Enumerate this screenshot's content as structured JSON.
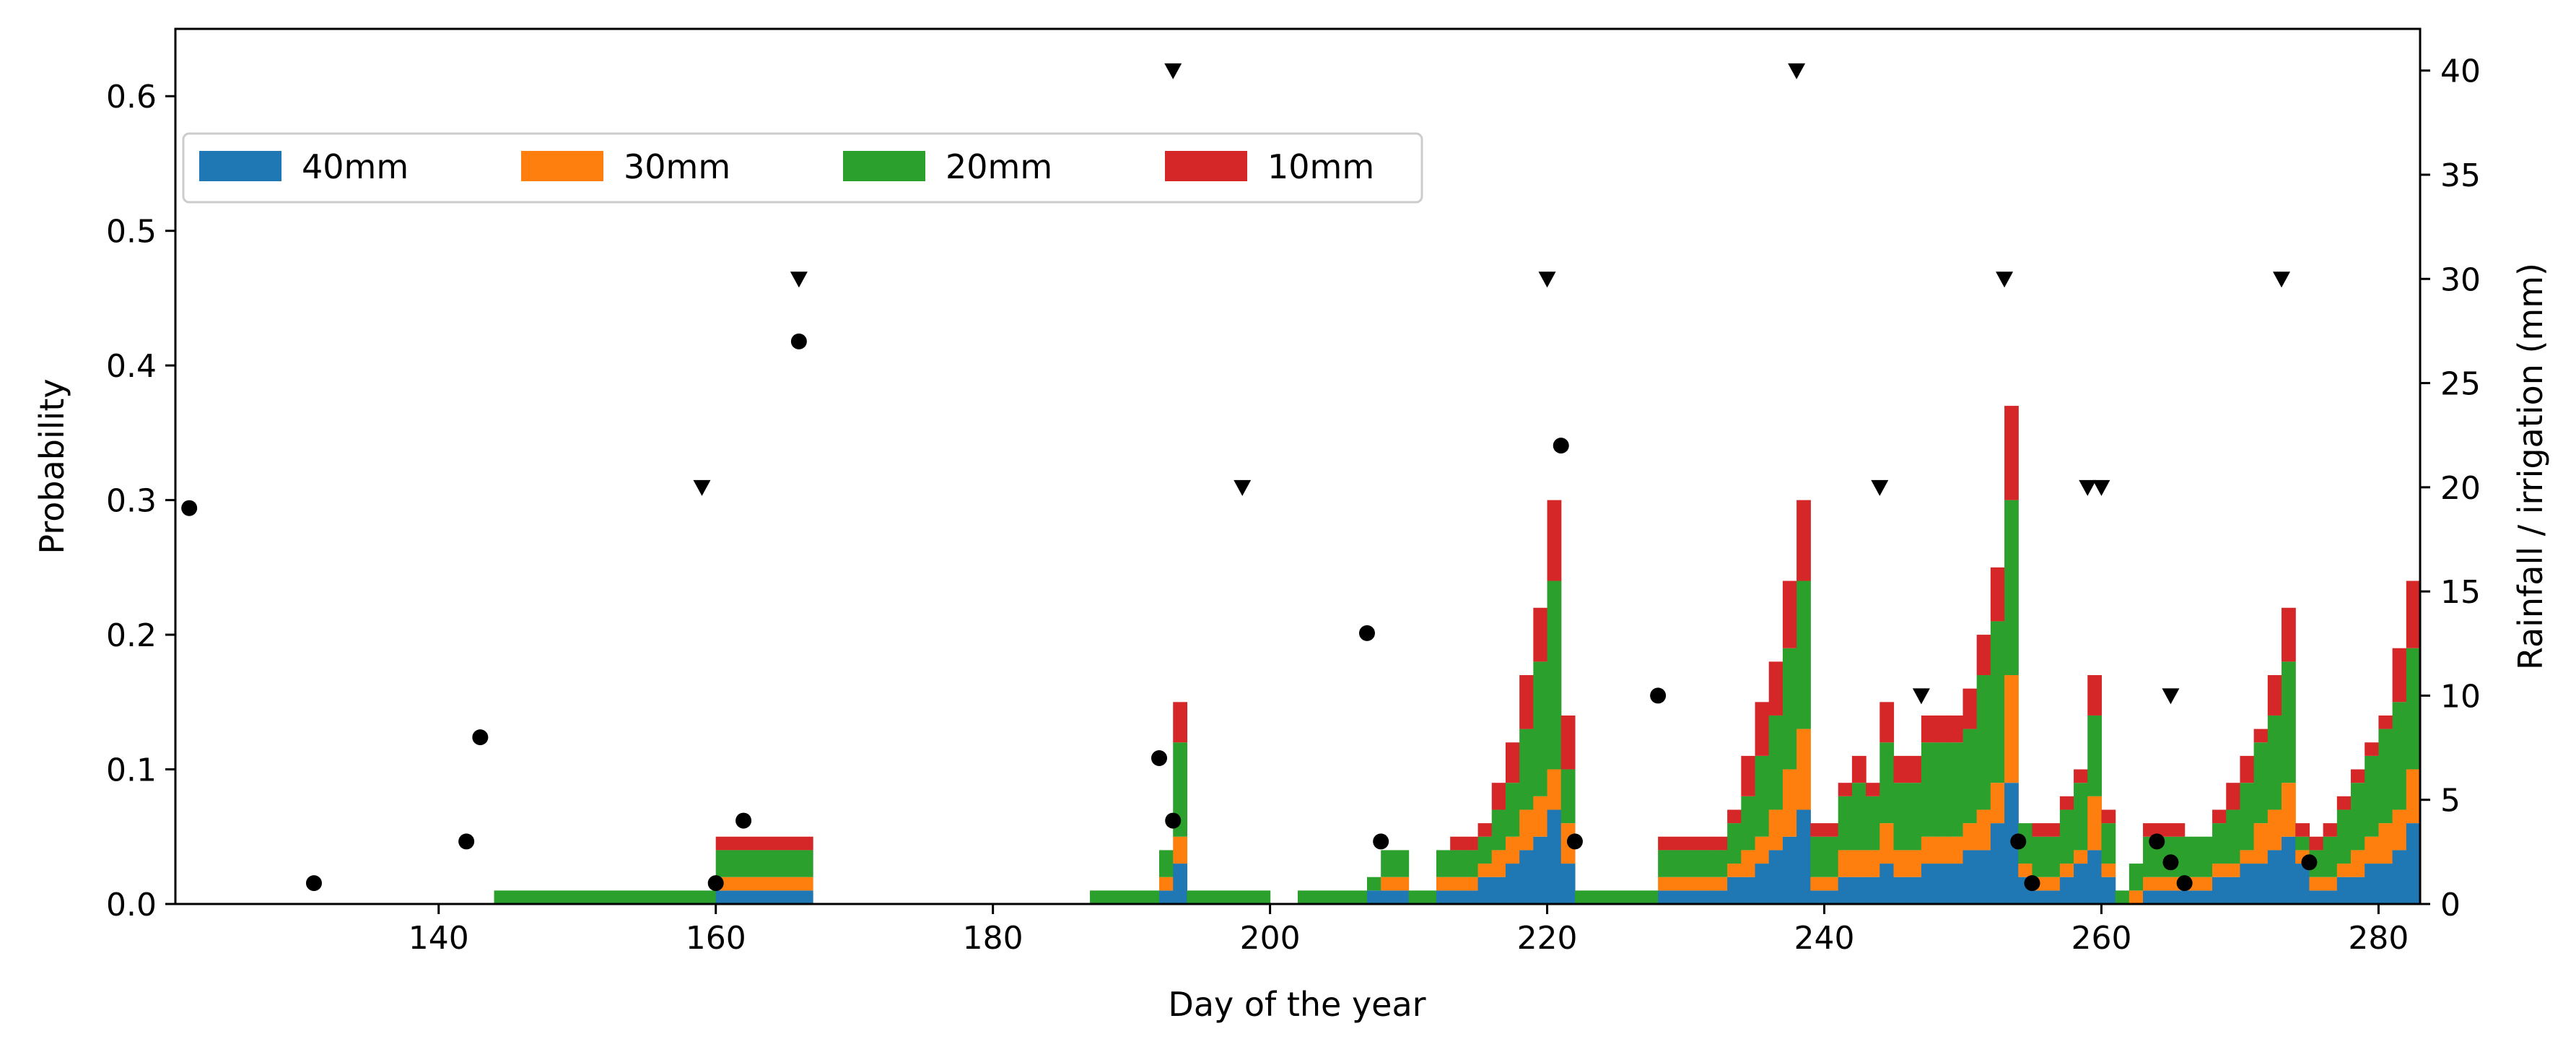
{
  "chart_data": {
    "type": "stacked-step-area + scatter",
    "xlabel": "Day of the year",
    "ylabel": "Probability",
    "y2label": "Rainfall / irrigation (mm)",
    "xlim": [
      121,
      283
    ],
    "ylim": [
      0,
      0.65
    ],
    "y2lim": [
      0,
      42
    ],
    "xticks": [
      140,
      160,
      180,
      200,
      220,
      240,
      260,
      280
    ],
    "yticks": [
      0.0,
      0.1,
      0.2,
      0.3,
      0.4,
      0.5,
      0.6
    ],
    "ytick_labels": [
      "0.0",
      "0.1",
      "0.2",
      "0.3",
      "0.4",
      "0.5",
      "0.6"
    ],
    "y2ticks": [
      0,
      5,
      10,
      15,
      20,
      25,
      30,
      35,
      40
    ],
    "legend_position": "upper-left",
    "series": [
      {
        "name": "40mm",
        "color": "#1f77b4"
      },
      {
        "name": "30mm",
        "color": "#ff7f0e"
      },
      {
        "name": "20mm",
        "color": "#2ca02c"
      },
      {
        "name": "10mm",
        "color": "#d62728"
      }
    ],
    "step_data": [
      {
        "day": 144,
        "end": 160,
        "p40": 0.0,
        "p30": 0.0,
        "p20": 0.01,
        "p10": 0.01
      },
      {
        "day": 160,
        "end": 167,
        "p40": 0.01,
        "p30": 0.02,
        "p20": 0.04,
        "p10": 0.05
      },
      {
        "day": 187,
        "end": 192,
        "p40": 0.0,
        "p30": 0.0,
        "p20": 0.01,
        "p10": 0.01
      },
      {
        "day": 192,
        "p40": 0.01,
        "p30": 0.02,
        "p20": 0.04,
        "p10": 0.04
      },
      {
        "day": 193,
        "p40": 0.03,
        "p30": 0.05,
        "p20": 0.12,
        "p10": 0.15
      },
      {
        "day": 194,
        "end": 200,
        "p40": 0.0,
        "p30": 0.0,
        "p20": 0.01,
        "p10": 0.01
      },
      {
        "day": 202,
        "end": 207,
        "p40": 0.0,
        "p30": 0.0,
        "p20": 0.01,
        "p10": 0.01
      },
      {
        "day": 207,
        "p40": 0.01,
        "p30": 0.01,
        "p20": 0.02,
        "p10": 0.02
      },
      {
        "day": 208,
        "end": 210,
        "p40": 0.01,
        "p30": 0.02,
        "p20": 0.04,
        "p10": 0.04
      },
      {
        "day": 210,
        "end": 212,
        "p40": 0.0,
        "p30": 0.0,
        "p20": 0.01,
        "p10": 0.01
      },
      {
        "day": 212,
        "p40": 0.01,
        "p30": 0.02,
        "p20": 0.04,
        "p10": 0.04
      },
      {
        "day": 213,
        "p40": 0.01,
        "p30": 0.02,
        "p20": 0.04,
        "p10": 0.05
      },
      {
        "day": 214,
        "p40": 0.01,
        "p30": 0.02,
        "p20": 0.04,
        "p10": 0.05
      },
      {
        "day": 215,
        "p40": 0.02,
        "p30": 0.03,
        "p20": 0.05,
        "p10": 0.06
      },
      {
        "day": 216,
        "p40": 0.02,
        "p30": 0.04,
        "p20": 0.07,
        "p10": 0.09
      },
      {
        "day": 217,
        "p40": 0.03,
        "p30": 0.05,
        "p20": 0.09,
        "p10": 0.12
      },
      {
        "day": 218,
        "p40": 0.04,
        "p30": 0.07,
        "p20": 0.13,
        "p10": 0.17
      },
      {
        "day": 219,
        "p40": 0.05,
        "p30": 0.08,
        "p20": 0.18,
        "p10": 0.22
      },
      {
        "day": 220,
        "p40": 0.07,
        "p30": 0.1,
        "p20": 0.24,
        "p10": 0.3
      },
      {
        "day": 221,
        "p40": 0.03,
        "p30": 0.06,
        "p20": 0.1,
        "p10": 0.14
      },
      {
        "day": 222,
        "end": 228,
        "p40": 0.0,
        "p30": 0.0,
        "p20": 0.01,
        "p10": 0.01
      },
      {
        "day": 228,
        "end": 232,
        "p40": 0.01,
        "p30": 0.02,
        "p20": 0.04,
        "p10": 0.05
      },
      {
        "day": 232,
        "p40": 0.01,
        "p30": 0.02,
        "p20": 0.04,
        "p10": 0.05
      },
      {
        "day": 233,
        "p40": 0.02,
        "p30": 0.03,
        "p20": 0.06,
        "p10": 0.07
      },
      {
        "day": 234,
        "p40": 0.02,
        "p30": 0.04,
        "p20": 0.08,
        "p10": 0.11
      },
      {
        "day": 235,
        "p40": 0.03,
        "p30": 0.05,
        "p20": 0.11,
        "p10": 0.15
      },
      {
        "day": 236,
        "p40": 0.04,
        "p30": 0.07,
        "p20": 0.14,
        "p10": 0.18
      },
      {
        "day": 237,
        "p40": 0.05,
        "p30": 0.1,
        "p20": 0.19,
        "p10": 0.24
      },
      {
        "day": 238,
        "p40": 0.07,
        "p30": 0.13,
        "p20": 0.24,
        "p10": 0.3
      },
      {
        "day": 239,
        "end": 241,
        "p40": 0.01,
        "p30": 0.02,
        "p20": 0.05,
        "p10": 0.06
      },
      {
        "day": 241,
        "p40": 0.02,
        "p30": 0.04,
        "p20": 0.08,
        "p10": 0.09
      },
      {
        "day": 242,
        "p40": 0.02,
        "p30": 0.04,
        "p20": 0.09,
        "p10": 0.11
      },
      {
        "day": 243,
        "p40": 0.02,
        "p30": 0.04,
        "p20": 0.08,
        "p10": 0.09
      },
      {
        "day": 244,
        "p40": 0.03,
        "p30": 0.06,
        "p20": 0.12,
        "p10": 0.15
      },
      {
        "day": 245,
        "p40": 0.02,
        "p30": 0.04,
        "p20": 0.09,
        "p10": 0.11
      },
      {
        "day": 246,
        "p40": 0.02,
        "p30": 0.04,
        "p20": 0.09,
        "p10": 0.11
      },
      {
        "day": 247,
        "p40": 0.03,
        "p30": 0.05,
        "p20": 0.12,
        "p10": 0.14
      },
      {
        "day": 248,
        "p40": 0.03,
        "p30": 0.05,
        "p20": 0.12,
        "p10": 0.14
      },
      {
        "day": 249,
        "p40": 0.03,
        "p30": 0.05,
        "p20": 0.12,
        "p10": 0.14
      },
      {
        "day": 250,
        "p40": 0.04,
        "p30": 0.06,
        "p20": 0.13,
        "p10": 0.16
      },
      {
        "day": 251,
        "p40": 0.04,
        "p30": 0.07,
        "p20": 0.17,
        "p10": 0.2
      },
      {
        "day": 252,
        "p40": 0.06,
        "p30": 0.09,
        "p20": 0.21,
        "p10": 0.25
      },
      {
        "day": 253,
        "p40": 0.09,
        "p30": 0.17,
        "p20": 0.3,
        "p10": 0.37
      },
      {
        "day": 254,
        "p40": 0.02,
        "p30": 0.03,
        "p20": 0.06,
        "p10": 0.06
      },
      {
        "day": 255,
        "p40": 0.01,
        "p30": 0.02,
        "p20": 0.05,
        "p10": 0.06
      },
      {
        "day": 256,
        "p40": 0.01,
        "p30": 0.02,
        "p20": 0.05,
        "p10": 0.06
      },
      {
        "day": 257,
        "p40": 0.02,
        "p30": 0.03,
        "p20": 0.07,
        "p10": 0.08
      },
      {
        "day": 258,
        "p40": 0.03,
        "p30": 0.04,
        "p20": 0.09,
        "p10": 0.1
      },
      {
        "day": 259,
        "p40": 0.04,
        "p30": 0.08,
        "p20": 0.14,
        "p10": 0.17
      },
      {
        "day": 260,
        "p40": 0.02,
        "p30": 0.03,
        "p20": 0.06,
        "p10": 0.07
      },
      {
        "day": 261,
        "p40": 0.0,
        "p30": 0.0,
        "p20": 0.01,
        "p10": 0.01
      },
      {
        "day": 262,
        "p40": 0.0,
        "p30": 0.01,
        "p20": 0.03,
        "p10": 0.03
      },
      {
        "day": 263,
        "end": 266,
        "p40": 0.01,
        "p30": 0.02,
        "p20": 0.05,
        "p10": 0.06
      },
      {
        "day": 266,
        "end": 268,
        "p40": 0.01,
        "p30": 0.02,
        "p20": 0.05,
        "p10": 0.05
      },
      {
        "day": 268,
        "p40": 0.02,
        "p30": 0.03,
        "p20": 0.06,
        "p10": 0.07
      },
      {
        "day": 269,
        "p40": 0.02,
        "p30": 0.03,
        "p20": 0.07,
        "p10": 0.09
      },
      {
        "day": 270,
        "p40": 0.03,
        "p30": 0.04,
        "p20": 0.09,
        "p10": 0.11
      },
      {
        "day": 271,
        "p40": 0.03,
        "p30": 0.06,
        "p20": 0.12,
        "p10": 0.13
      },
      {
        "day": 272,
        "p40": 0.04,
        "p30": 0.07,
        "p20": 0.14,
        "p10": 0.17
      },
      {
        "day": 273,
        "p40": 0.05,
        "p30": 0.09,
        "p20": 0.18,
        "p10": 0.22
      },
      {
        "day": 274,
        "p40": 0.03,
        "p30": 0.04,
        "p20": 0.05,
        "p10": 0.06
      },
      {
        "day": 275,
        "p40": 0.01,
        "p30": 0.02,
        "p20": 0.04,
        "p10": 0.05
      },
      {
        "day": 276,
        "p40": 0.01,
        "p30": 0.02,
        "p20": 0.05,
        "p10": 0.06
      },
      {
        "day": 277,
        "p40": 0.02,
        "p30": 0.03,
        "p20": 0.07,
        "p10": 0.08
      },
      {
        "day": 278,
        "p40": 0.02,
        "p30": 0.04,
        "p20": 0.09,
        "p10": 0.1
      },
      {
        "day": 279,
        "p40": 0.03,
        "p30": 0.05,
        "p20": 0.11,
        "p10": 0.12
      },
      {
        "day": 280,
        "p40": 0.03,
        "p30": 0.06,
        "p20": 0.13,
        "p10": 0.14
      },
      {
        "day": 281,
        "p40": 0.04,
        "p30": 0.07,
        "p20": 0.15,
        "p10": 0.19
      },
      {
        "day": 282,
        "end": 283,
        "p40": 0.06,
        "p30": 0.1,
        "p20": 0.19,
        "p10": 0.24
      }
    ],
    "rainfall_points": {
      "name": "Rainfall",
      "marker": "circle",
      "color": "#000000",
      "points": [
        [
          122,
          19
        ],
        [
          131,
          1
        ],
        [
          142,
          3
        ],
        [
          143,
          8
        ],
        [
          160,
          1
        ],
        [
          162,
          4
        ],
        [
          166,
          27
        ],
        [
          192,
          7
        ],
        [
          193,
          4
        ],
        [
          207,
          13
        ],
        [
          208,
          3
        ],
        [
          221,
          22
        ],
        [
          222,
          3
        ],
        [
          228,
          10
        ],
        [
          254,
          3
        ],
        [
          255,
          1
        ],
        [
          264,
          3
        ],
        [
          265,
          2
        ],
        [
          266,
          1
        ],
        [
          275,
          2
        ]
      ]
    },
    "irrigation_points": {
      "name": "Irrigation",
      "marker": "triangle-down",
      "color": "#000000",
      "points": [
        [
          159,
          20
        ],
        [
          166,
          30
        ],
        [
          193,
          40
        ],
        [
          198,
          20
        ],
        [
          220,
          30
        ],
        [
          238,
          40
        ],
        [
          244,
          20
        ],
        [
          247,
          10
        ],
        [
          253,
          30
        ],
        [
          259,
          20
        ],
        [
          260,
          20
        ],
        [
          265,
          10
        ],
        [
          273,
          30
        ]
      ]
    }
  }
}
